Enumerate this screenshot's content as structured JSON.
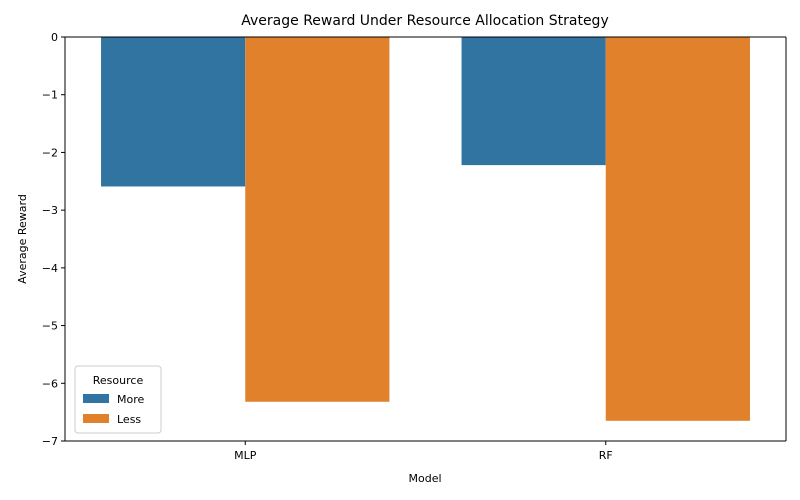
{
  "chart_data": {
    "type": "bar",
    "title": "Average Reward Under Resource Allocation Strategy",
    "xlabel": "Model",
    "ylabel": "Average Reward",
    "categories": [
      "MLP",
      "RF"
    ],
    "series": [
      {
        "name": "More",
        "color": "#3274a1",
        "values": [
          -2.59,
          -2.22
        ]
      },
      {
        "name": "Less",
        "color": "#e1812c",
        "values": [
          -6.32,
          -6.65
        ]
      }
    ],
    "ylim": [
      -7,
      0
    ],
    "yticks": [
      "0",
      "−1",
      "−2",
      "−3",
      "−4",
      "−5",
      "−6",
      "−7"
    ],
    "grid": false,
    "legend": {
      "title": "Resource",
      "position": "bottom-left"
    }
  }
}
